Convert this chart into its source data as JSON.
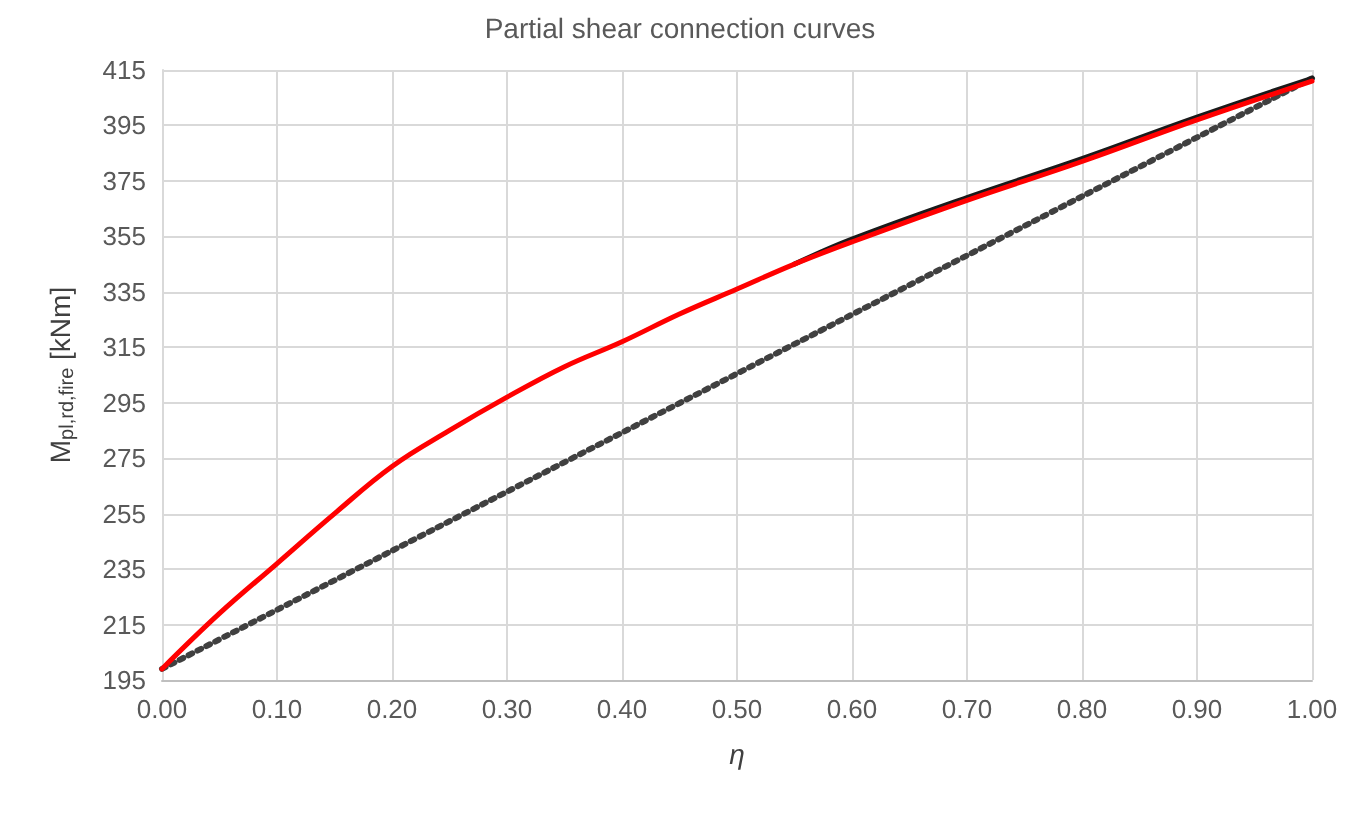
{
  "chart_data": {
    "type": "line",
    "title": "Partial shear connection curves",
    "xlabel": "η",
    "ylabel": "M$_{pl,rd,fire}$ [kNm]",
    "xlim": [
      0,
      1
    ],
    "xticks": [
      {
        "value": 0,
        "label": "0.00"
      },
      {
        "value": 0.1,
        "label": "0.10"
      },
      {
        "value": 0.2,
        "label": "0.20"
      },
      {
        "value": 0.3,
        "label": "0.30"
      },
      {
        "value": 0.4,
        "label": "0.40"
      },
      {
        "value": 0.5,
        "label": "0.50"
      },
      {
        "value": 0.6,
        "label": "0.60"
      },
      {
        "value": 0.7,
        "label": "0.70"
      },
      {
        "value": 0.8,
        "label": "0.80"
      },
      {
        "value": 0.9,
        "label": "0.90"
      },
      {
        "value": 1,
        "label": "1.00"
      }
    ],
    "ylim": [
      195,
      415
    ],
    "yticks": [
      195,
      215,
      235,
      255,
      275,
      295,
      315,
      335,
      355,
      375,
      395,
      415
    ],
    "grid": true,
    "marker": "none",
    "series": [
      {
        "color": "#404040",
        "line_style": "dotted",
        "x": [
          0,
          1
        ],
        "values": [
          199,
          412
        ]
      },
      {
        "color": "#1a1a1a",
        "line_style": "solid",
        "x": [
          0.55,
          0.6,
          0.7,
          0.8,
          0.9,
          1
        ],
        "values": [
          345,
          354,
          369,
          383,
          398,
          412
        ]
      },
      {
        "color": "#ff0000",
        "line_style": "solid",
        "x": [
          0,
          0.05,
          0.1,
          0.15,
          0.2,
          0.25,
          0.3,
          0.35,
          0.4,
          0.45,
          0.5,
          0.55,
          0.6,
          0.7,
          0.8,
          0.9,
          1
        ],
        "values": [
          199,
          219,
          237,
          255,
          272,
          285,
          297,
          308,
          317,
          327,
          336,
          345,
          353,
          368,
          382,
          397,
          411
        ]
      }
    ]
  }
}
